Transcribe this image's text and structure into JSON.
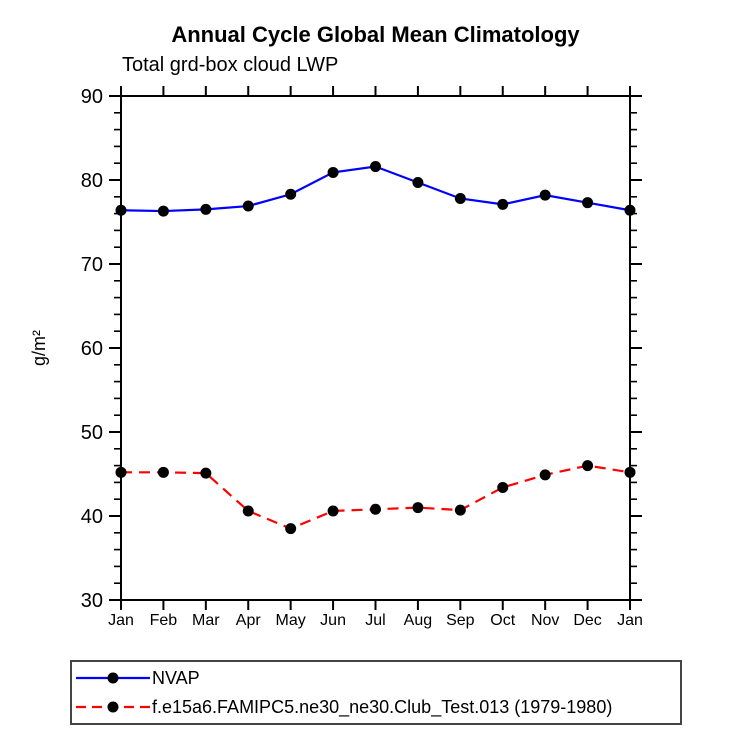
{
  "chart": {
    "title": "Annual Cycle Global Mean Climatology",
    "subtitle": "Total grd-box cloud LWP",
    "ylabel": "g/m²"
  },
  "chart_data": {
    "type": "line",
    "title": "Annual Cycle Global Mean Climatology",
    "subtitle": "Total grd-box cloud LWP",
    "ylabel": "g/m²",
    "categories": [
      "Jan",
      "Feb",
      "Mar",
      "Apr",
      "May",
      "Jun",
      "Jul",
      "Aug",
      "Sep",
      "Oct",
      "Nov",
      "Dec",
      "Jan"
    ],
    "ylim": [
      30,
      90
    ],
    "y_major_ticks": [
      30,
      40,
      50,
      60,
      70,
      80,
      90
    ],
    "y_minor_step": 2,
    "grid": false,
    "legend_position": "bottom-left-box",
    "marker": "filled-circle",
    "marker_color": "#000000",
    "axis_color": "#000000",
    "series": [
      {
        "name": "NVAP",
        "color": "#0000ff",
        "line_style": "solid",
        "values": [
          76.4,
          76.3,
          76.5,
          76.9,
          78.3,
          80.9,
          81.6,
          79.7,
          77.8,
          77.1,
          78.2,
          77.3,
          76.4
        ]
      },
      {
        "name": "f.e15a6.FAMIPC5.ne30_ne30.Club_Test.013 (1979-1980)",
        "color": "#ff0000",
        "line_style": "dashed",
        "values": [
          45.2,
          45.2,
          45.1,
          40.6,
          38.5,
          40.6,
          40.8,
          41.0,
          40.7,
          43.4,
          44.9,
          46.0,
          45.2
        ]
      }
    ]
  }
}
